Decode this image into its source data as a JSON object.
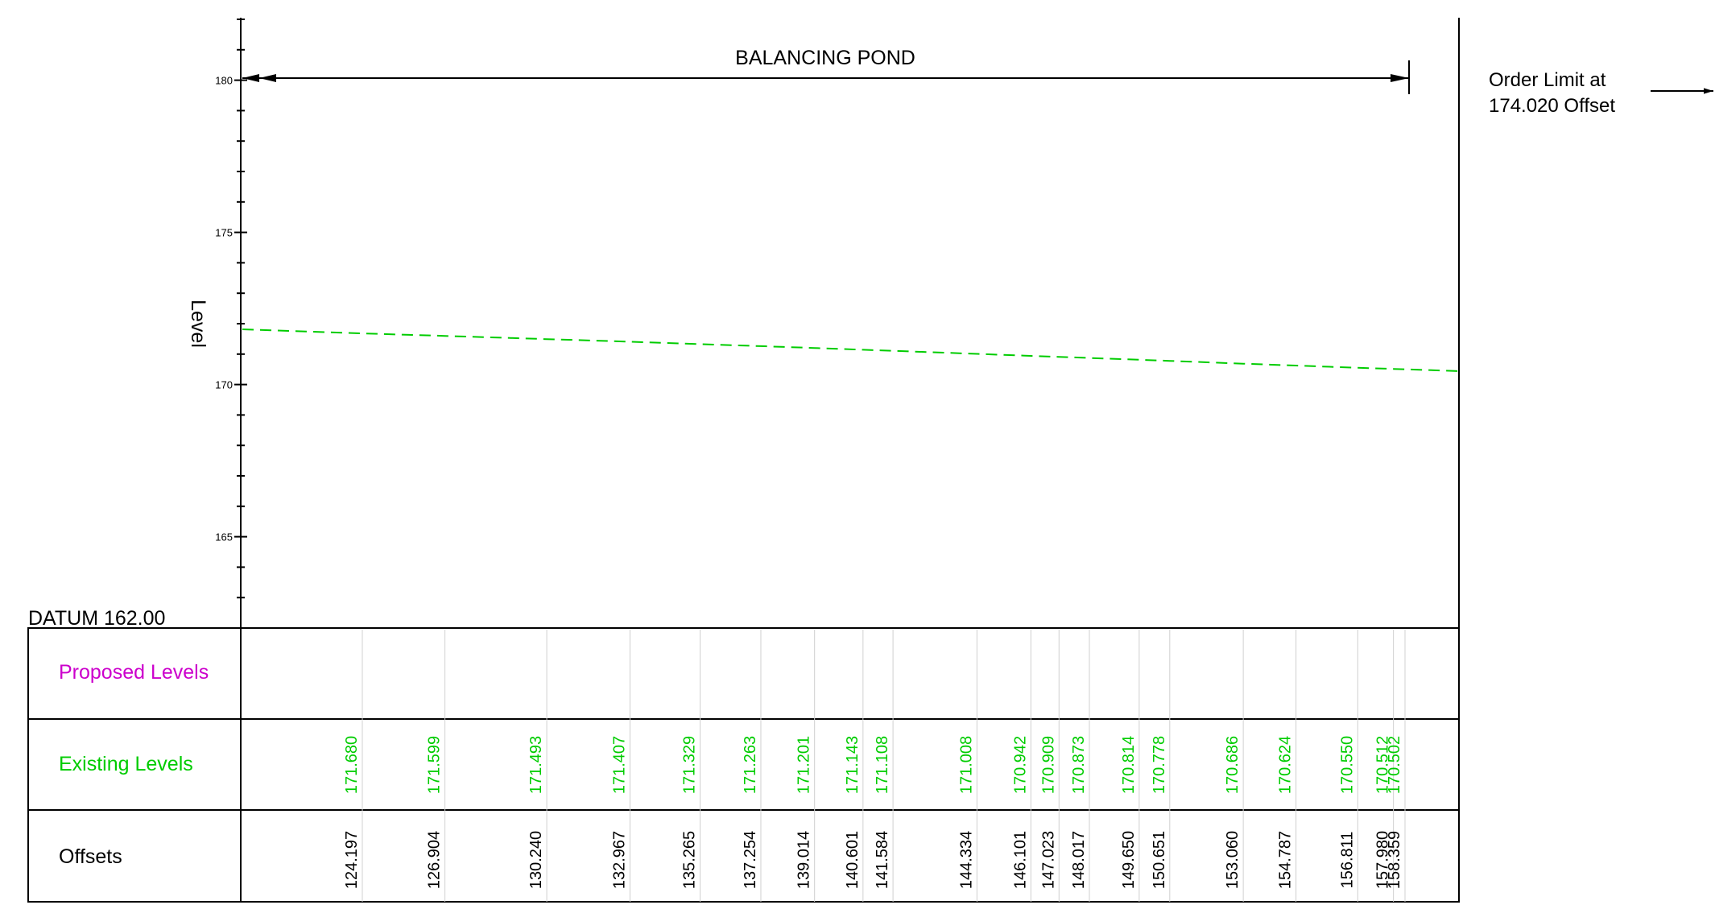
{
  "title": "BALANCING POND",
  "order_limit": {
    "line1": "Order Limit at",
    "line2": "174.020 Offset"
  },
  "y_axis_label": "Level",
  "datum_label": "DATUM 162.00",
  "row_labels": {
    "proposed": "Proposed Levels",
    "existing": "Existing Levels",
    "offsets": "Offsets"
  },
  "colors": {
    "proposed": "#cc00cc",
    "existing": "#00cc00",
    "offsets": "#000000",
    "gridline": "#d0d0d0",
    "line": "#000000"
  },
  "chart_data": {
    "type": "line",
    "ylabel": "Level",
    "ylim": [
      162,
      182
    ],
    "xlim": [
      124.197,
      158.359
    ],
    "y_ticks": [
      165,
      170,
      175,
      180
    ],
    "y_tick_labels": [
      "165",
      "170",
      "175",
      "180"
    ],
    "datum": 162.0,
    "series": [
      {
        "name": "Existing Levels",
        "style": "dashed",
        "color": "#00cc00",
        "x": [
          124.197,
          126.904,
          130.24,
          132.967,
          135.265,
          137.254,
          139.014,
          140.601,
          141.584,
          144.334,
          146.101,
          147.023,
          148.017,
          149.65,
          150.651,
          153.06,
          154.787,
          156.811,
          157.98,
          158.359
        ],
        "y": [
          171.68,
          171.599,
          171.493,
          171.407,
          171.329,
          171.263,
          171.201,
          171.143,
          171.108,
          171.008,
          170.942,
          170.909,
          170.873,
          170.814,
          170.778,
          170.686,
          170.624,
          170.55,
          170.512,
          170.502
        ]
      }
    ],
    "offsets": [
      "124.197",
      "126.904",
      "130.240",
      "132.967",
      "135.265",
      "137.254",
      "139.014",
      "140.601",
      "141.584",
      "144.334",
      "146.101",
      "147.023",
      "148.017",
      "149.650",
      "150.651",
      "153.060",
      "154.787",
      "156.811",
      "157.980",
      "158.359"
    ],
    "existing_levels": [
      "171.680",
      "171.599",
      "171.493",
      "171.407",
      "171.329",
      "171.263",
      "171.201",
      "171.143",
      "171.108",
      "171.008",
      "170.942",
      "170.909",
      "170.873",
      "170.814",
      "170.778",
      "170.686",
      "170.624",
      "170.550",
      "170.512",
      "170.502"
    ]
  }
}
